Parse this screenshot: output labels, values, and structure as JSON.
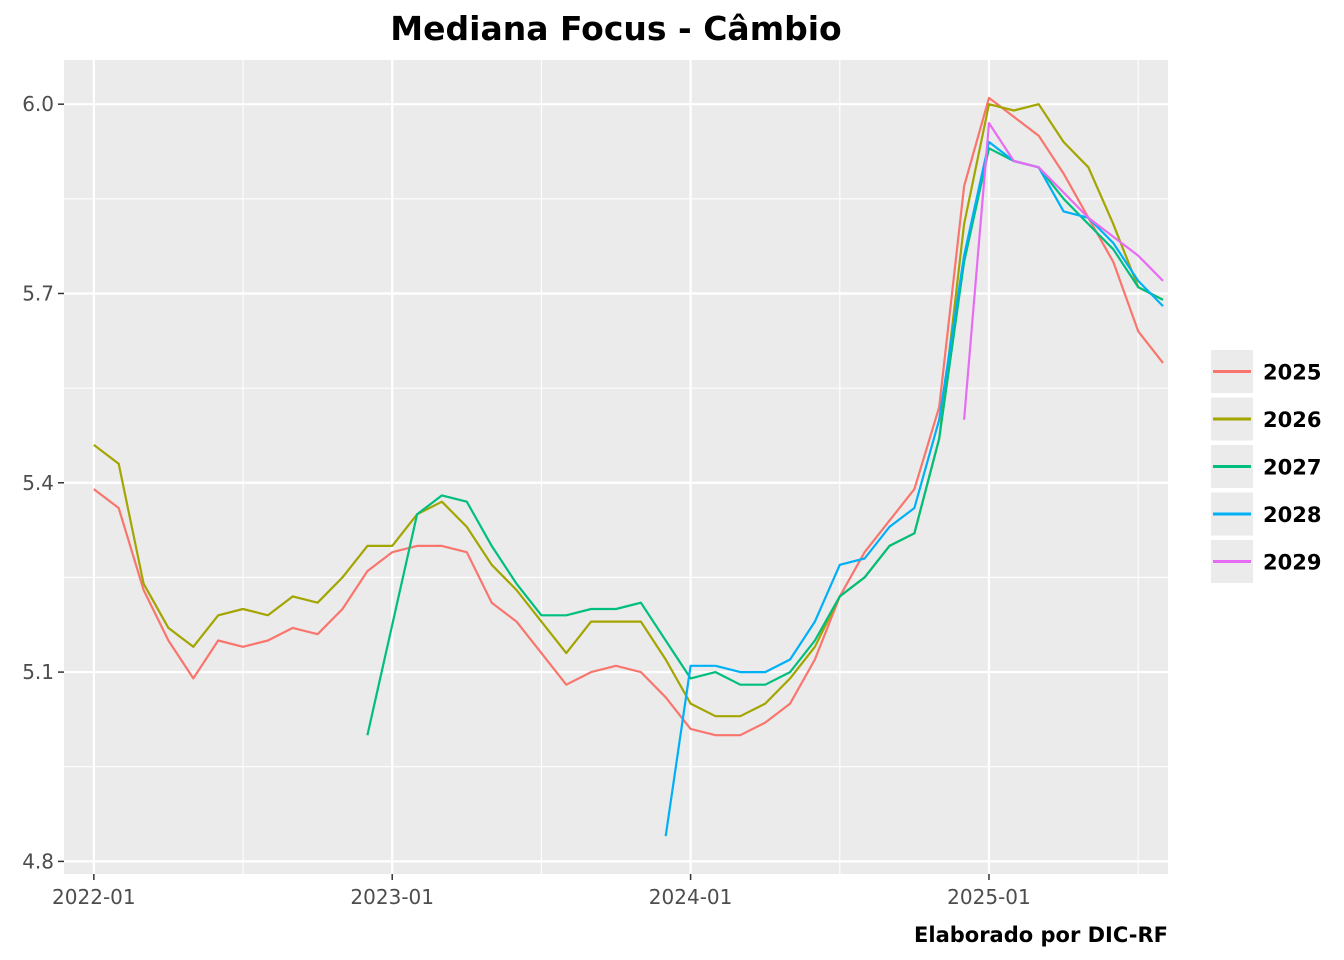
{
  "chart_data": {
    "type": "line",
    "title": "Mediana Focus - Câmbio",
    "caption": "Elaborado por DIC-RF",
    "xlabel": "",
    "ylabel": "",
    "x_ticks": [
      "2022-01",
      "2023-01",
      "2024-01",
      "2025-01"
    ],
    "y_ticks": [
      4.8,
      5.1,
      5.4,
      5.7,
      6.0
    ],
    "ylim": [
      4.78,
      6.07
    ],
    "xlim": [
      "2021-12",
      "2025-08"
    ],
    "grid": true,
    "legend_position": "right",
    "series": [
      {
        "name": "2025",
        "color": "#F8766D",
        "points": [
          [
            "2022-01",
            5.39
          ],
          [
            "2022-02",
            5.36
          ],
          [
            "2022-03",
            5.23
          ],
          [
            "2022-04",
            5.15
          ],
          [
            "2022-05",
            5.09
          ],
          [
            "2022-06",
            5.15
          ],
          [
            "2022-07",
            5.14
          ],
          [
            "2022-08",
            5.15
          ],
          [
            "2022-09",
            5.17
          ],
          [
            "2022-10",
            5.16
          ],
          [
            "2022-11",
            5.2
          ],
          [
            "2022-12",
            5.26
          ],
          [
            "2023-01",
            5.29
          ],
          [
            "2023-02",
            5.3
          ],
          [
            "2023-03",
            5.3
          ],
          [
            "2023-04",
            5.29
          ],
          [
            "2023-05",
            5.21
          ],
          [
            "2023-06",
            5.18
          ],
          [
            "2023-07",
            5.13
          ],
          [
            "2023-08",
            5.08
          ],
          [
            "2023-09",
            5.1
          ],
          [
            "2023-10",
            5.11
          ],
          [
            "2023-11",
            5.1
          ],
          [
            "2023-12",
            5.06
          ],
          [
            "2024-01",
            5.01
          ],
          [
            "2024-02",
            5.0
          ],
          [
            "2024-03",
            5.0
          ],
          [
            "2024-04",
            5.02
          ],
          [
            "2024-05",
            5.05
          ],
          [
            "2024-06",
            5.12
          ],
          [
            "2024-07",
            5.22
          ],
          [
            "2024-08",
            5.29
          ],
          [
            "2024-09",
            5.34
          ],
          [
            "2024-10",
            5.39
          ],
          [
            "2024-11",
            5.52
          ],
          [
            "2024-12",
            5.87
          ],
          [
            "2025-01",
            6.01
          ],
          [
            "2025-02",
            5.98
          ],
          [
            "2025-03",
            5.95
          ],
          [
            "2025-04",
            5.89
          ],
          [
            "2025-05",
            5.82
          ],
          [
            "2025-06",
            5.75
          ],
          [
            "2025-07",
            5.64
          ],
          [
            "2025-08",
            5.59
          ]
        ]
      },
      {
        "name": "2026",
        "color": "#A3A500",
        "points": [
          [
            "2022-01",
            5.46
          ],
          [
            "2022-02",
            5.43
          ],
          [
            "2022-03",
            5.24
          ],
          [
            "2022-04",
            5.17
          ],
          [
            "2022-05",
            5.14
          ],
          [
            "2022-06",
            5.19
          ],
          [
            "2022-07",
            5.2
          ],
          [
            "2022-08",
            5.19
          ],
          [
            "2022-09",
            5.22
          ],
          [
            "2022-10",
            5.21
          ],
          [
            "2022-11",
            5.25
          ],
          [
            "2022-12",
            5.3
          ],
          [
            "2023-01",
            5.3
          ],
          [
            "2023-02",
            5.35
          ],
          [
            "2023-03",
            5.37
          ],
          [
            "2023-04",
            5.33
          ],
          [
            "2023-05",
            5.27
          ],
          [
            "2023-06",
            5.23
          ],
          [
            "2023-07",
            5.18
          ],
          [
            "2023-08",
            5.13
          ],
          [
            "2023-09",
            5.18
          ],
          [
            "2023-10",
            5.18
          ],
          [
            "2023-11",
            5.18
          ],
          [
            "2023-12",
            5.12
          ],
          [
            "2024-01",
            5.05
          ],
          [
            "2024-02",
            5.03
          ],
          [
            "2024-03",
            5.03
          ],
          [
            "2024-04",
            5.05
          ],
          [
            "2024-05",
            5.09
          ],
          [
            "2024-06",
            5.14
          ],
          [
            "2024-07",
            5.22
          ],
          [
            "2024-08",
            5.25
          ],
          [
            "2024-09",
            5.3
          ],
          [
            "2024-10",
            5.32
          ],
          [
            "2024-11",
            5.47
          ],
          [
            "2024-12",
            5.81
          ],
          [
            "2025-01",
            6.0
          ],
          [
            "2025-02",
            5.99
          ],
          [
            "2025-03",
            6.0
          ],
          [
            "2025-04",
            5.94
          ],
          [
            "2025-05",
            5.9
          ],
          [
            "2025-06",
            5.81
          ],
          [
            "2025-07",
            5.71
          ],
          [
            "2025-08",
            5.69
          ]
        ]
      },
      {
        "name": "2027",
        "color": "#00BF7D",
        "points": [
          [
            "2022-12",
            5.0
          ],
          [
            "2023-02",
            5.35
          ],
          [
            "2023-03",
            5.38
          ],
          [
            "2023-04",
            5.37
          ],
          [
            "2023-05",
            5.3
          ],
          [
            "2023-06",
            5.24
          ],
          [
            "2023-07",
            5.19
          ],
          [
            "2023-08",
            5.19
          ],
          [
            "2023-09",
            5.2
          ],
          [
            "2023-10",
            5.2
          ],
          [
            "2023-11",
            5.21
          ],
          [
            "2023-12",
            5.15
          ],
          [
            "2024-01",
            5.09
          ],
          [
            "2024-02",
            5.1
          ],
          [
            "2024-03",
            5.08
          ],
          [
            "2024-04",
            5.08
          ],
          [
            "2024-05",
            5.1
          ],
          [
            "2024-06",
            5.15
          ],
          [
            "2024-07",
            5.22
          ],
          [
            "2024-08",
            5.25
          ],
          [
            "2024-09",
            5.3
          ],
          [
            "2024-10",
            5.32
          ],
          [
            "2024-11",
            5.47
          ],
          [
            "2024-12",
            5.75
          ],
          [
            "2025-01",
            5.93
          ],
          [
            "2025-02",
            5.91
          ],
          [
            "2025-03",
            5.9
          ],
          [
            "2025-04",
            5.85
          ],
          [
            "2025-05",
            5.81
          ],
          [
            "2025-06",
            5.77
          ],
          [
            "2025-07",
            5.71
          ],
          [
            "2025-08",
            5.69
          ]
        ]
      },
      {
        "name": "2028",
        "color": "#00B0F6",
        "points": [
          [
            "2023-12",
            4.84
          ],
          [
            "2024-01",
            5.11
          ],
          [
            "2024-02",
            5.11
          ],
          [
            "2024-03",
            5.1
          ],
          [
            "2024-04",
            5.1
          ],
          [
            "2024-05",
            5.12
          ],
          [
            "2024-06",
            5.18
          ],
          [
            "2024-07",
            5.27
          ],
          [
            "2024-08",
            5.28
          ],
          [
            "2024-09",
            5.33
          ],
          [
            "2024-10",
            5.36
          ],
          [
            "2024-11",
            5.5
          ],
          [
            "2024-12",
            5.76
          ],
          [
            "2025-01",
            5.94
          ],
          [
            "2025-02",
            5.91
          ],
          [
            "2025-03",
            5.9
          ],
          [
            "2025-04",
            5.83
          ],
          [
            "2025-05",
            5.82
          ],
          [
            "2025-06",
            5.78
          ],
          [
            "2025-07",
            5.72
          ],
          [
            "2025-08",
            5.68
          ]
        ]
      },
      {
        "name": "2029",
        "color": "#E76BF3",
        "points": [
          [
            "2024-12",
            5.5
          ],
          [
            "2025-01",
            5.97
          ],
          [
            "2025-02",
            5.91
          ],
          [
            "2025-03",
            5.9
          ],
          [
            "2025-04",
            5.86
          ],
          [
            "2025-05",
            5.82
          ],
          [
            "2025-06",
            5.79
          ],
          [
            "2025-07",
            5.76
          ],
          [
            "2025-08",
            5.72
          ]
        ]
      }
    ]
  }
}
